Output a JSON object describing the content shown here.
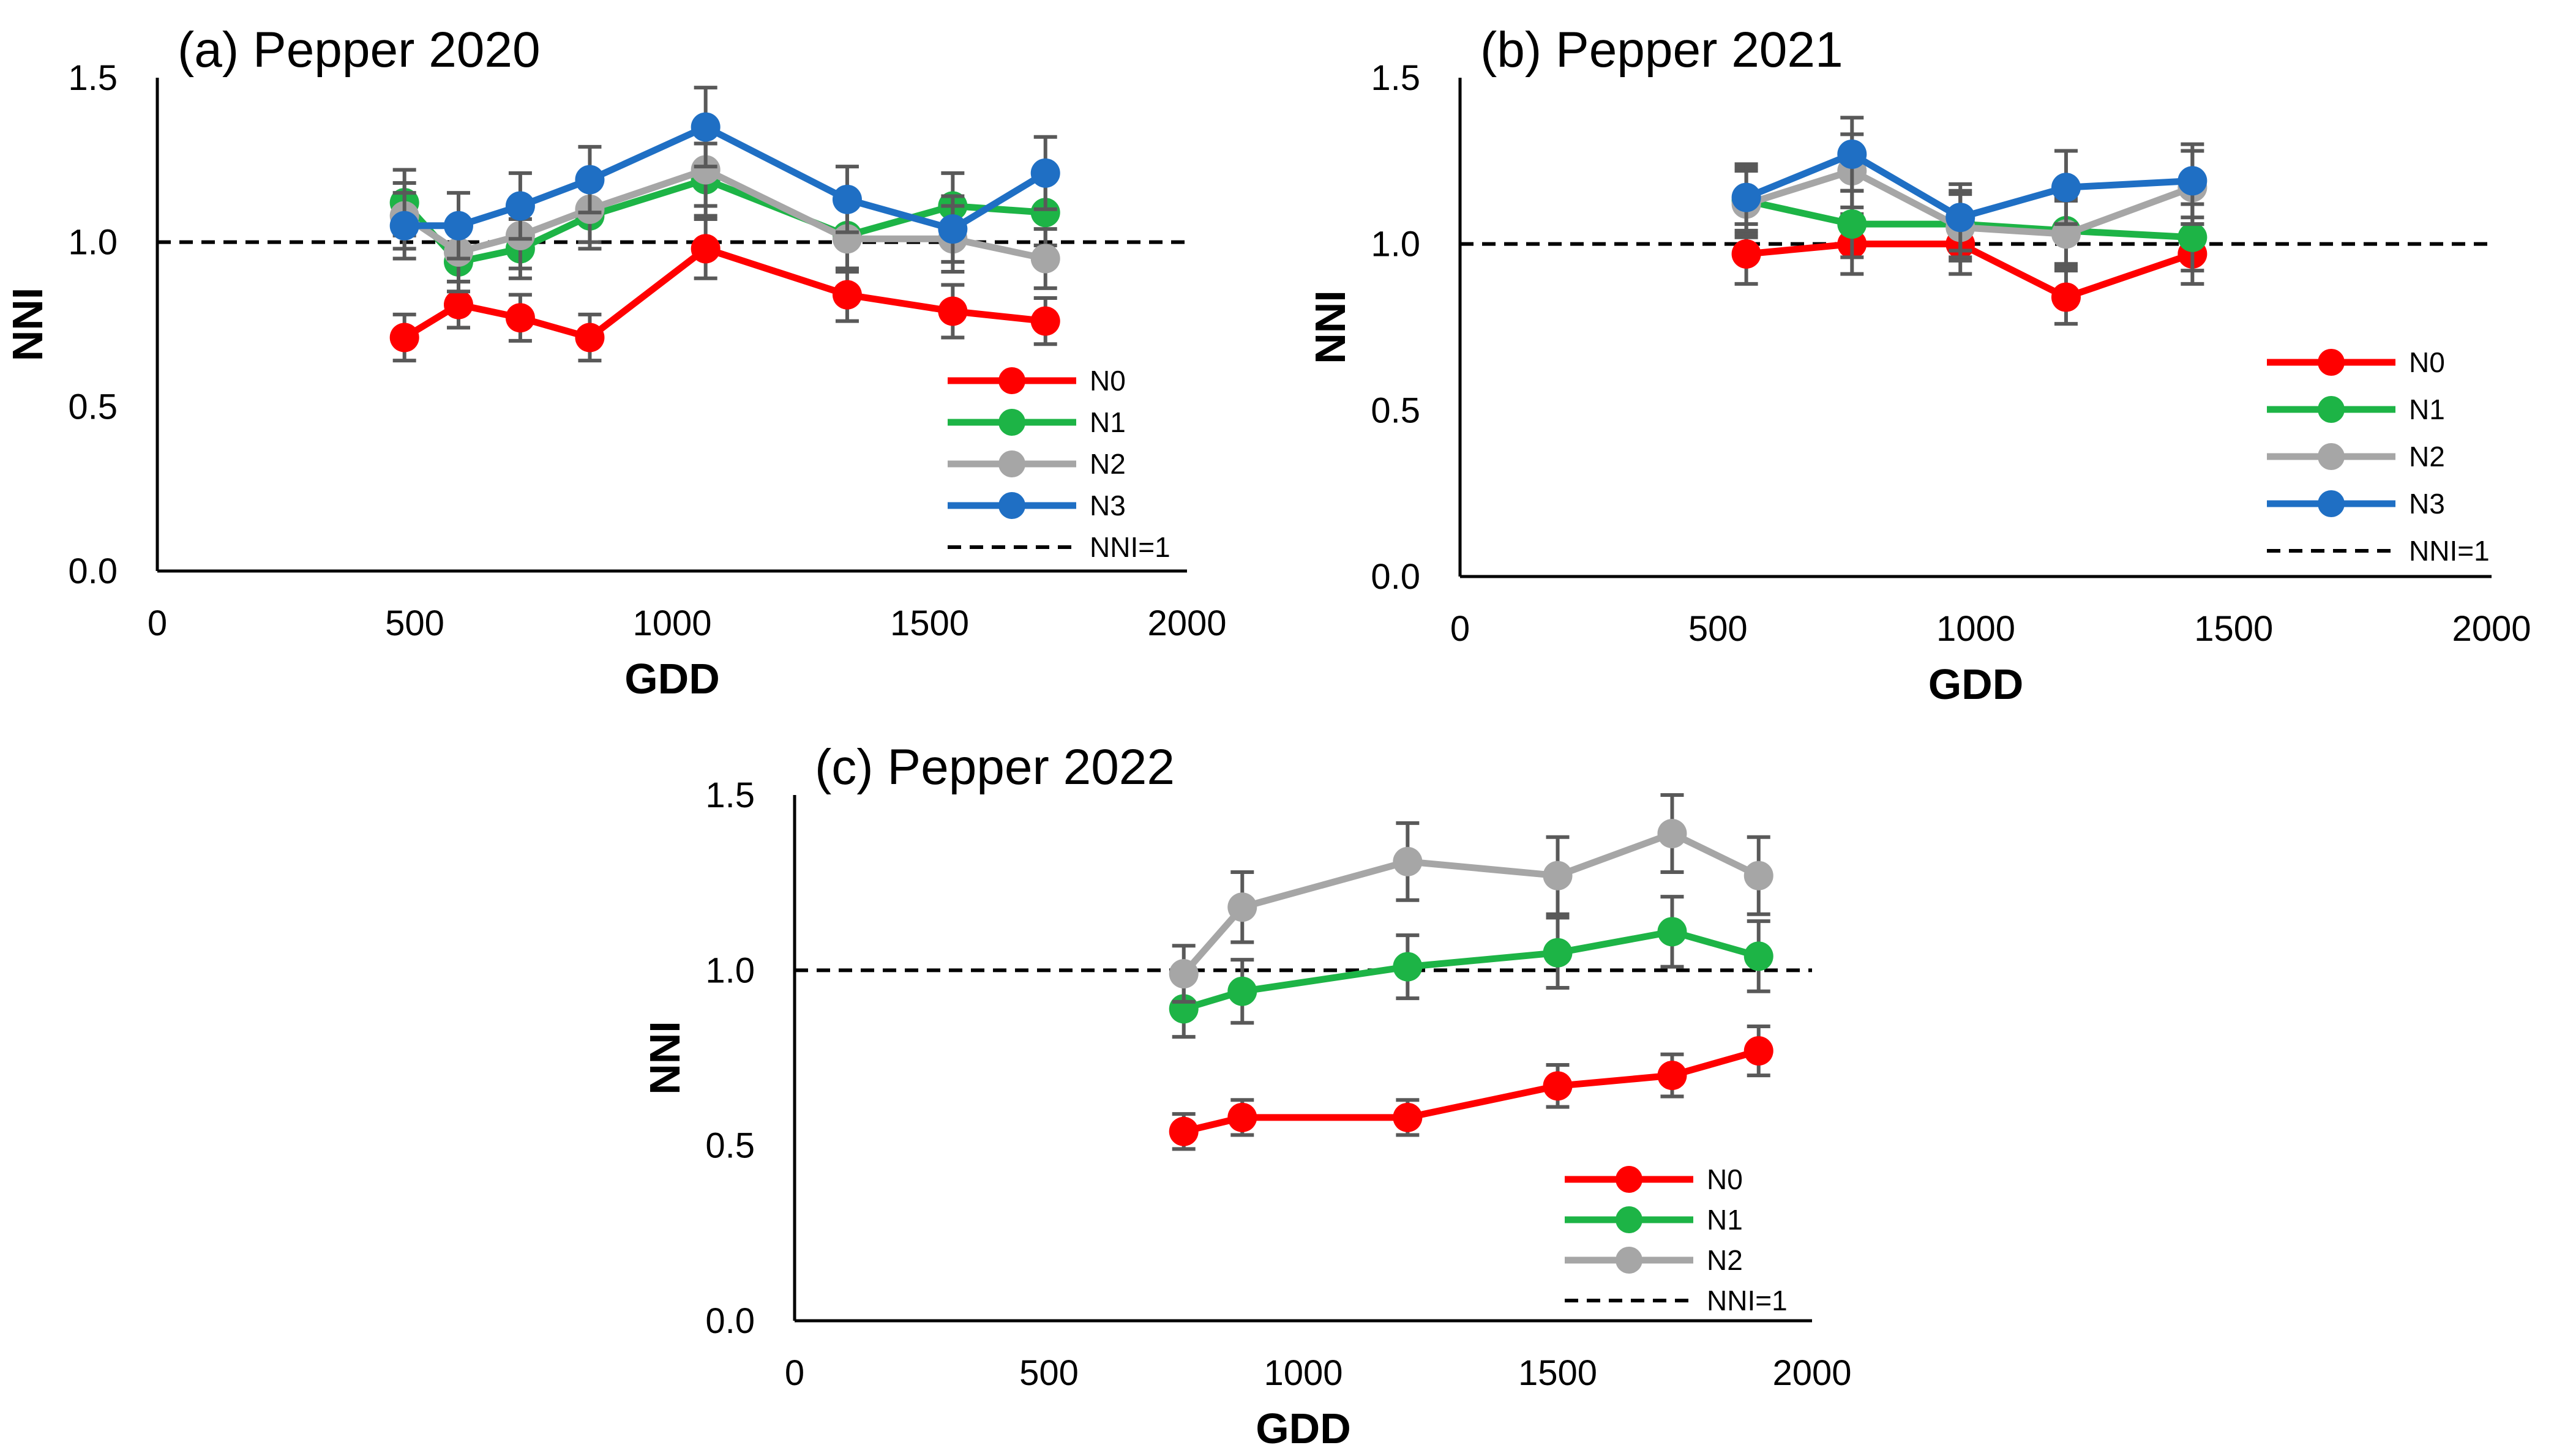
{
  "chart_data": [
    {
      "type": "line",
      "title": "(a) Pepper 2020",
      "xlabel": "GDD",
      "ylabel": "NNI",
      "xlim": [
        0,
        2000
      ],
      "ylim": [
        0.0,
        1.5
      ],
      "xticks": [
        0,
        500,
        1000,
        1500,
        2000
      ],
      "yticks": [
        "0.0",
        "0.5",
        "1.0",
        "1.5"
      ],
      "reference_line": {
        "name": "NNI=1",
        "y": 1.0,
        "style": "dashed"
      },
      "legend_position": "bottom-right",
      "x": [
        480,
        585,
        705,
        840,
        1065,
        1340,
        1545,
        1725
      ],
      "series": [
        {
          "name": "N0",
          "color": "#ff0000",
          "values": [
            0.71,
            0.81,
            0.77,
            0.71,
            0.98,
            0.84,
            0.79,
            0.76
          ],
          "errors": [
            0.07,
            0.07,
            0.07,
            0.07,
            0.09,
            0.08,
            0.08,
            0.07
          ]
        },
        {
          "name": "N1",
          "color": "#1db446",
          "values": [
            1.12,
            0.94,
            0.98,
            1.08,
            1.19,
            1.02,
            1.11,
            1.09
          ],
          "errors": [
            0.1,
            0.09,
            0.09,
            0.1,
            0.11,
            0.1,
            0.1,
            0.1
          ]
        },
        {
          "name": "N2",
          "color": "#a6a6a6",
          "values": [
            1.08,
            0.97,
            1.02,
            1.1,
            1.22,
            1.01,
            1.01,
            0.95
          ],
          "errors": [
            0.1,
            0.09,
            0.1,
            0.1,
            0.11,
            0.1,
            0.1,
            0.09
          ]
        },
        {
          "name": "N3",
          "color": "#1f6fc4",
          "values": [
            1.05,
            1.05,
            1.11,
            1.19,
            1.35,
            1.13,
            1.04,
            1.21
          ],
          "errors": [
            0.1,
            0.1,
            0.1,
            0.1,
            0.12,
            0.1,
            0.1,
            0.11
          ]
        }
      ]
    },
    {
      "type": "line",
      "title": "(b) Pepper 2021",
      "xlabel": "GDD",
      "ylabel": "NNI",
      "xlim": [
        0,
        2000
      ],
      "ylim": [
        0.0,
        1.5
      ],
      "xticks": [
        0,
        500,
        1000,
        1500,
        2000
      ],
      "yticks": [
        "0.0",
        "0.5",
        "1.0",
        "1.5"
      ],
      "reference_line": {
        "name": "NNI=1",
        "y": 1.0,
        "style": "dashed"
      },
      "legend_position": "bottom-right",
      "x": [
        555,
        760,
        970,
        1175,
        1420
      ],
      "series": [
        {
          "name": "N0",
          "color": "#ff0000",
          "values": [
            0.97,
            1.0,
            1.0,
            0.84,
            0.97
          ],
          "errors": [
            0.09,
            0.09,
            0.09,
            0.08,
            0.09
          ]
        },
        {
          "name": "N1",
          "color": "#1db446",
          "values": [
            1.13,
            1.06,
            1.06,
            1.04,
            1.02
          ],
          "errors": [
            0.1,
            0.1,
            0.1,
            0.1,
            0.1
          ]
        },
        {
          "name": "N2",
          "color": "#a6a6a6",
          "values": [
            1.12,
            1.22,
            1.05,
            1.03,
            1.17
          ],
          "errors": [
            0.1,
            0.11,
            0.1,
            0.1,
            0.11
          ]
        },
        {
          "name": "N3",
          "color": "#1f6fc4",
          "values": [
            1.14,
            1.27,
            1.08,
            1.17,
            1.19
          ],
          "errors": [
            0.1,
            0.11,
            0.1,
            0.11,
            0.11
          ]
        }
      ]
    },
    {
      "type": "line",
      "title": "(c) Pepper 2022",
      "xlabel": "GDD",
      "ylabel": "NNI",
      "xlim": [
        0,
        2000
      ],
      "ylim": [
        0.0,
        1.5
      ],
      "xticks": [
        0,
        500,
        1000,
        1500,
        2000
      ],
      "yticks": [
        "0.0",
        "0.5",
        "1.0",
        "1.5"
      ],
      "reference_line": {
        "name": "NNI=1",
        "y": 1.0,
        "style": "dashed"
      },
      "legend_position": "bottom-right",
      "x": [
        765,
        880,
        1205,
        1500,
        1725,
        1895
      ],
      "series": [
        {
          "name": "N0",
          "color": "#ff0000",
          "values": [
            0.54,
            0.58,
            0.58,
            0.67,
            0.7,
            0.77
          ],
          "errors": [
            0.05,
            0.05,
            0.05,
            0.06,
            0.06,
            0.07
          ]
        },
        {
          "name": "N1",
          "color": "#1db446",
          "values": [
            0.89,
            0.94,
            1.01,
            1.05,
            1.11,
            1.04
          ],
          "errors": [
            0.08,
            0.09,
            0.09,
            0.1,
            0.1,
            0.1
          ]
        },
        {
          "name": "N2",
          "color": "#a6a6a6",
          "values": [
            0.99,
            1.18,
            1.31,
            1.27,
            1.39,
            1.27
          ],
          "errors": [
            0.08,
            0.1,
            0.11,
            0.11,
            0.11,
            0.11
          ]
        }
      ]
    }
  ]
}
